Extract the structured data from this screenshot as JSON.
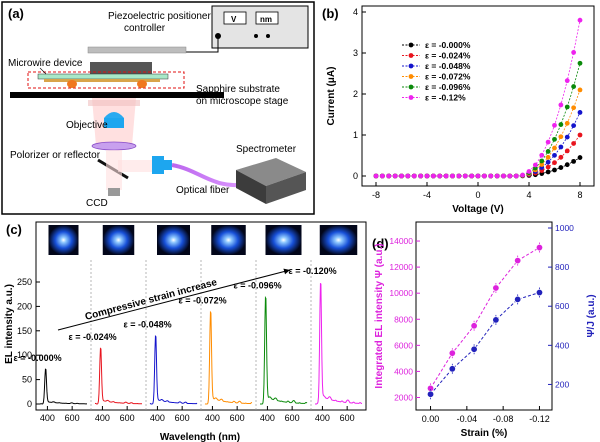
{
  "panels": {
    "a": "(a)",
    "b": "(b)",
    "c": "(c)",
    "d": "(d)"
  },
  "setup": {
    "controller_label_1": "Piezoelectric positioner",
    "controller_label_2": "controller",
    "display_v": "V",
    "display_nm": "nm",
    "device_label": "Microwire device",
    "substrate_label_1": "Sapphire  substrate",
    "substrate_label_2": "on microscope stage",
    "objective_label": "Objective",
    "polarizer_label": "Polorizer or reflector",
    "spectrometer_label": "Spectrometer",
    "fiber_label": "Optical fiber",
    "ccd_label": "CCD"
  },
  "colors": {
    "s0": "#000000",
    "s1": "#e8141e",
    "s2": "#1414cc",
    "s3": "#ff8c00",
    "s4": "#0a8a0a",
    "s5": "#ee22ee",
    "d_left": "#dd22dd",
    "d_right": "#2222bb"
  },
  "chart_data": [
    {
      "id": "b",
      "type": "line",
      "xlabel": "Voltage (V)",
      "ylabel": "Current (μA)",
      "xlim": [
        -8,
        8
      ],
      "ylim": [
        0,
        4
      ],
      "xticks": [
        "-8",
        "-4",
        "0",
        "4",
        "8"
      ],
      "yticks": [
        "0",
        "1",
        "2",
        "3",
        "4"
      ],
      "legend_position": "top-left",
      "x": [
        -8,
        -7.5,
        -7,
        -6.5,
        -6,
        -5.5,
        -5,
        -4.5,
        -4,
        -3.5,
        -3,
        -2.5,
        -2,
        -1.5,
        -1,
        -0.5,
        0,
        0.5,
        1,
        1.5,
        2,
        2.5,
        3,
        3.5,
        4,
        4.5,
        5,
        5.5,
        6,
        6.5,
        7,
        7.5,
        8
      ],
      "series": [
        {
          "name": "ε = -0.000%",
          "peak": 0.45
        },
        {
          "name": "ε = -0.024%",
          "peak": 1.0
        },
        {
          "name": "ε = -0.048%",
          "peak": 1.55
        },
        {
          "name": "ε = -0.072%",
          "peak": 2.1
        },
        {
          "name": "ε = -0.096%",
          "peak": 2.75
        },
        {
          "name": "ε = -0.12%",
          "peak": 3.8
        }
      ]
    },
    {
      "id": "c",
      "type": "line",
      "xlabel": "Wavelength (nm)",
      "ylabel": "EL intensity a.u.)",
      "ylim": [
        0,
        250
      ],
      "yticks": [
        "0",
        "50",
        "100",
        "150",
        "200",
        "250"
      ],
      "segment_xticks": [
        "400",
        "600"
      ],
      "segment_xlim": [
        340,
        720
      ],
      "arrow_label": "Compressive strain increase",
      "series": [
        {
          "name": "ε = -0.000%",
          "peak_nm": 385,
          "peak": 72
        },
        {
          "name": "ε = -0.024%",
          "peak_nm": 385,
          "peak": 115
        },
        {
          "name": "ε = -0.048%",
          "peak_nm": 385,
          "peak": 140
        },
        {
          "name": "ε = -0.072%",
          "peak_nm": 385,
          "peak": 190
        },
        {
          "name": "ε = -0.096%",
          "peak_nm": 385,
          "peak": 220
        },
        {
          "name": "ε = -0.120%",
          "peak_nm": 385,
          "peak": 250
        }
      ]
    },
    {
      "id": "d",
      "type": "scatter",
      "xlabel": "Strain (%)",
      "ylabel_left": "Integrated EL intensity Ψ (a.u.)",
      "ylabel_right": "Ψ/J (a.u.)",
      "x": [
        0.0,
        -0.024,
        -0.048,
        -0.072,
        -0.096,
        -0.12
      ],
      "xlim": [
        0.005,
        -0.125
      ],
      "xticks": [
        "0.00",
        "-0.04",
        "-0.08",
        "-0.12"
      ],
      "xtick_values": [
        0.0,
        -0.04,
        -0.08,
        -0.12
      ],
      "ylim_left": [
        1500,
        15000
      ],
      "yticks_left": [
        "2000",
        "4000",
        "6000",
        "8000",
        "10000",
        "12000",
        "14000"
      ],
      "ylim_right": [
        100,
        1000
      ],
      "yticks_right": [
        "200",
        "400",
        "600",
        "800",
        "1000"
      ],
      "series": [
        {
          "name": "Ψ",
          "axis": "left",
          "values": [
            2700,
            5400,
            7500,
            10400,
            12500,
            13500
          ]
        },
        {
          "name": "Ψ/J",
          "axis": "right",
          "values": [
            150,
            280,
            380,
            530,
            635,
            670
          ]
        }
      ]
    }
  ]
}
